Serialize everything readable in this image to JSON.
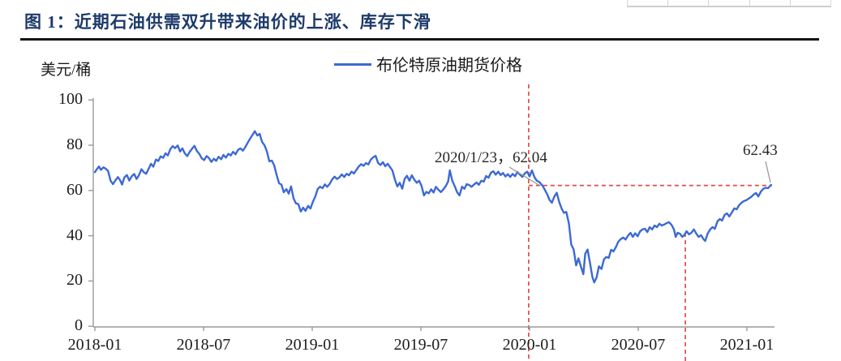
{
  "header": {
    "title": "图 1：近期石油供需双升带来油价的上涨、库存下滑"
  },
  "chart_data": {
    "type": "line",
    "title": "图 1：近期石油供需双升带来油价的上涨、库存下滑",
    "unit_label": "美元/桶",
    "legend": {
      "label": "布伦特原油期货价格",
      "position": "top-center"
    },
    "colors": {
      "line": "#3c69d4",
      "reference": "#e14b4b",
      "leader": "#999999",
      "axis": "#9a9a9a",
      "title": "#1d3a6a"
    },
    "x_tick_labels": [
      "2018-01",
      "2018-07",
      "2019-01",
      "2019-07",
      "2020-01",
      "2020-07",
      "2021-01"
    ],
    "x_tick_months": [
      0,
      6,
      12,
      18,
      24,
      30,
      36
    ],
    "y_ticks": [
      0,
      20,
      40,
      60,
      80,
      100
    ],
    "ylim": [
      0,
      100
    ],
    "xlim_months": [
      0,
      37.6
    ],
    "grid": false,
    "annotations": [
      {
        "text": "2020/1/23，62.04",
        "x_month": 24.72,
        "value": 62.04
      },
      {
        "text": "62.43",
        "x_month": 37.34,
        "value": 62.43
      }
    ],
    "reference_lines": {
      "vertical": [
        {
          "x_month": 23.95
        },
        {
          "x_month": 32.6
        }
      ],
      "horizontal": [
        {
          "value": 62.2,
          "from_month": 23.95,
          "to_month": 37.2
        }
      ]
    },
    "series": [
      {
        "name": "布伦特原油期货价格",
        "points": [
          [
            0,
            68.1
          ],
          [
            0.1,
            69.3
          ],
          [
            0.23,
            70.6
          ],
          [
            0.33,
            69.1
          ],
          [
            0.47,
            70.2
          ],
          [
            0.6,
            69.6
          ],
          [
            0.73,
            68.6
          ],
          [
            0.87,
            64.3
          ],
          [
            1,
            62.8
          ],
          [
            1.13,
            64.4
          ],
          [
            1.27,
            65.9
          ],
          [
            1.4,
            64.4
          ],
          [
            1.5,
            62.6
          ],
          [
            1.63,
            65.8
          ],
          [
            1.77,
            66.8
          ],
          [
            1.9,
            64.4
          ],
          [
            2.03,
            66.2
          ],
          [
            2.17,
            67.3
          ],
          [
            2.3,
            65.1
          ],
          [
            2.43,
            66.7
          ],
          [
            2.57,
            69.4
          ],
          [
            2.7,
            68.1
          ],
          [
            2.83,
            67.4
          ],
          [
            2.97,
            69.6
          ],
          [
            3.1,
            71.8
          ],
          [
            3.23,
            70.5
          ],
          [
            3.37,
            73.7
          ],
          [
            3.5,
            73
          ],
          [
            3.63,
            75.1
          ],
          [
            3.77,
            74.4
          ],
          [
            3.9,
            76.4
          ],
          [
            4.03,
            75.5
          ],
          [
            4.17,
            78.3
          ],
          [
            4.3,
            79.6
          ],
          [
            4.43,
            78.7
          ],
          [
            4.57,
            79.9
          ],
          [
            4.7,
            77.2
          ],
          [
            4.83,
            78.6
          ],
          [
            4.97,
            76.3
          ],
          [
            5.1,
            75.2
          ],
          [
            5.23,
            77
          ],
          [
            5.37,
            78.5
          ],
          [
            5.5,
            79.7
          ],
          [
            5.63,
            77.5
          ],
          [
            5.77,
            76.1
          ],
          [
            5.9,
            74.2
          ],
          [
            6.03,
            73.4
          ],
          [
            6.17,
            75.2
          ],
          [
            6.3,
            74.3
          ],
          [
            6.43,
            72.6
          ],
          [
            6.57,
            74
          ],
          [
            6.7,
            73.1
          ],
          [
            6.83,
            74.9
          ],
          [
            6.97,
            73.8
          ],
          [
            7.1,
            75.7
          ],
          [
            7.23,
            74.5
          ],
          [
            7.37,
            76.2
          ],
          [
            7.5,
            75.5
          ],
          [
            7.63,
            77.1
          ],
          [
            7.77,
            76
          ],
          [
            7.9,
            77.9
          ],
          [
            8.03,
            78.6
          ],
          [
            8.17,
            77.6
          ],
          [
            8.3,
            79.1
          ],
          [
            8.43,
            81
          ],
          [
            8.57,
            82.9
          ],
          [
            8.7,
            84.5
          ],
          [
            8.83,
            86.2
          ],
          [
            8.97,
            84.3
          ],
          [
            9.1,
            85
          ],
          [
            9.23,
            81.5
          ],
          [
            9.37,
            79.9
          ],
          [
            9.5,
            77.1
          ],
          [
            9.63,
            72.9
          ],
          [
            9.77,
            73.2
          ],
          [
            9.9,
            71.1
          ],
          [
            10.03,
            67
          ],
          [
            10.17,
            63.2
          ],
          [
            10.3,
            62.6
          ],
          [
            10.43,
            59.2
          ],
          [
            10.57,
            60.6
          ],
          [
            10.7,
            58.6
          ],
          [
            10.83,
            61.8
          ],
          [
            10.97,
            56.5
          ],
          [
            11.1,
            54.3
          ],
          [
            11.23,
            54
          ],
          [
            11.37,
            50.7
          ],
          [
            11.5,
            52.4
          ],
          [
            11.63,
            51
          ],
          [
            11.77,
            53.2
          ],
          [
            11.9,
            52
          ],
          [
            12.03,
            54.9
          ],
          [
            12.17,
            57.4
          ],
          [
            12.3,
            60.6
          ],
          [
            12.43,
            61.7
          ],
          [
            12.57,
            61
          ],
          [
            12.7,
            62.7
          ],
          [
            12.83,
            61.6
          ],
          [
            12.97,
            63
          ],
          [
            13.1,
            64.9
          ],
          [
            13.23,
            66.1
          ],
          [
            13.37,
            65.1
          ],
          [
            13.5,
            65.8
          ],
          [
            13.63,
            67.1
          ],
          [
            13.77,
            66
          ],
          [
            13.9,
            67.4
          ],
          [
            14.03,
            66.7
          ],
          [
            14.17,
            68.3
          ],
          [
            14.3,
            67.5
          ],
          [
            14.43,
            69
          ],
          [
            14.57,
            70.6
          ],
          [
            14.7,
            71.6
          ],
          [
            14.83,
            70.9
          ],
          [
            14.97,
            72.1
          ],
          [
            15.1,
            71.5
          ],
          [
            15.23,
            73.6
          ],
          [
            15.37,
            74.7
          ],
          [
            15.5,
            75.3
          ],
          [
            15.63,
            72.2
          ],
          [
            15.77,
            71.3
          ],
          [
            15.9,
            72.5
          ],
          [
            16.03,
            70.7
          ],
          [
            16.17,
            71.8
          ],
          [
            16.3,
            70.3
          ],
          [
            16.43,
            68.8
          ],
          [
            16.57,
            64.6
          ],
          [
            16.7,
            61.8
          ],
          [
            16.83,
            63.4
          ],
          [
            16.97,
            60.8
          ],
          [
            17.1,
            65.1
          ],
          [
            17.23,
            66.5
          ],
          [
            17.37,
            64.3
          ],
          [
            17.5,
            66.7
          ],
          [
            17.63,
            64.9
          ],
          [
            17.77,
            63.4
          ],
          [
            17.9,
            64.3
          ],
          [
            18.03,
            62.1
          ],
          [
            18.17,
            57.8
          ],
          [
            18.3,
            59.4
          ],
          [
            18.43,
            58.7
          ],
          [
            18.57,
            60.5
          ],
          [
            18.7,
            59.1
          ],
          [
            18.83,
            61.6
          ],
          [
            18.97,
            60.3
          ],
          [
            19.1,
            59.3
          ],
          [
            19.23,
            60.4
          ],
          [
            19.37,
            61.9
          ],
          [
            19.5,
            63.9
          ],
          [
            19.6,
            68.9
          ],
          [
            19.73,
            64.4
          ],
          [
            19.87,
            61.8
          ],
          [
            20,
            59.2
          ],
          [
            20.13,
            57.8
          ],
          [
            20.27,
            61.7
          ],
          [
            20.4,
            60.7
          ],
          [
            20.53,
            62.8
          ],
          [
            20.67,
            62.4
          ],
          [
            20.8,
            61.6
          ],
          [
            20.93,
            62.6
          ],
          [
            21.07,
            63.5
          ],
          [
            21.2,
            62.5
          ],
          [
            21.33,
            64.3
          ],
          [
            21.47,
            63.9
          ],
          [
            21.6,
            66.4
          ],
          [
            21.73,
            65.6
          ],
          [
            21.87,
            67.9
          ],
          [
            22,
            68.5
          ],
          [
            22.13,
            67
          ],
          [
            22.27,
            68.3
          ],
          [
            22.4,
            66.8
          ],
          [
            22.53,
            67.7
          ],
          [
            22.67,
            66.2
          ],
          [
            22.8,
            67.2
          ],
          [
            22.93,
            66
          ],
          [
            23.07,
            67.3
          ],
          [
            23.2,
            66.3
          ],
          [
            23.33,
            68.2
          ],
          [
            23.47,
            67
          ],
          [
            23.6,
            66
          ],
          [
            23.73,
            67.5
          ],
          [
            23.87,
            68.3
          ],
          [
            24,
            66.2
          ],
          [
            24.13,
            68.9
          ],
          [
            24.27,
            65.9
          ],
          [
            24.4,
            64.3
          ],
          [
            24.53,
            63.8
          ],
          [
            24.72,
            62.04
          ],
          [
            24.83,
            60.5
          ],
          [
            24.97,
            58.3
          ],
          [
            25.1,
            55.8
          ],
          [
            25.23,
            54.6
          ],
          [
            25.37,
            57.4
          ],
          [
            25.5,
            59
          ],
          [
            25.63,
            55.1
          ],
          [
            25.77,
            52
          ],
          [
            25.9,
            50.1
          ],
          [
            26.03,
            50.5
          ],
          [
            26.17,
            45.4
          ],
          [
            26.3,
            36.1
          ],
          [
            26.43,
            34
          ],
          [
            26.57,
            26.9
          ],
          [
            26.7,
            30
          ],
          [
            26.83,
            26.5
          ],
          [
            26.97,
            23
          ],
          [
            27.07,
            32
          ],
          [
            27.2,
            33.9
          ],
          [
            27.33,
            28.2
          ],
          [
            27.47,
            21.7
          ],
          [
            27.57,
            19.4
          ],
          [
            27.7,
            21.5
          ],
          [
            27.83,
            26.5
          ],
          [
            27.97,
            25.3
          ],
          [
            28.1,
            29.5
          ],
          [
            28.23,
            30.6
          ],
          [
            28.37,
            30.2
          ],
          [
            28.5,
            33.8
          ],
          [
            28.63,
            33.1
          ],
          [
            28.77,
            35
          ],
          [
            28.9,
            37.4
          ],
          [
            29.03,
            38.5
          ],
          [
            29.17,
            39.2
          ],
          [
            29.3,
            38.3
          ],
          [
            29.43,
            40
          ],
          [
            29.57,
            41.3
          ],
          [
            29.7,
            39.5
          ],
          [
            29.83,
            41.1
          ],
          [
            29.97,
            39.8
          ],
          [
            30.1,
            41.9
          ],
          [
            30.23,
            42.8
          ],
          [
            30.37,
            43.1
          ],
          [
            30.5,
            41.6
          ],
          [
            30.63,
            43.8
          ],
          [
            30.77,
            42.8
          ],
          [
            30.9,
            44.5
          ],
          [
            31.03,
            43.8
          ],
          [
            31.17,
            45.3
          ],
          [
            31.3,
            44.5
          ],
          [
            31.43,
            44.9
          ],
          [
            31.57,
            45.6
          ],
          [
            31.7,
            46
          ],
          [
            31.83,
            44.9
          ],
          [
            31.97,
            42.8
          ],
          [
            32.07,
            39.5
          ],
          [
            32.17,
            41.3
          ],
          [
            32.3,
            40.9
          ],
          [
            32.43,
            39.5
          ],
          [
            32.53,
            40.2
          ],
          [
            32.67,
            42
          ],
          [
            32.8,
            40.6
          ],
          [
            32.93,
            41.3
          ],
          [
            33.07,
            42.8
          ],
          [
            33.2,
            41
          ],
          [
            33.33,
            39.5
          ],
          [
            33.47,
            40.2
          ],
          [
            33.6,
            38.5
          ],
          [
            33.7,
            37.7
          ],
          [
            33.83,
            40.9
          ],
          [
            33.97,
            42.8
          ],
          [
            34.1,
            43.8
          ],
          [
            34.23,
            43.1
          ],
          [
            34.37,
            46.3
          ],
          [
            34.5,
            47.4
          ],
          [
            34.63,
            46.7
          ],
          [
            34.77,
            49.2
          ],
          [
            34.9,
            49.9
          ],
          [
            35.03,
            48.5
          ],
          [
            35.17,
            50.3
          ],
          [
            35.3,
            52.1
          ],
          [
            35.43,
            51.7
          ],
          [
            35.57,
            53.5
          ],
          [
            35.7,
            54.6
          ],
          [
            35.83,
            55.3
          ],
          [
            35.97,
            55.7
          ],
          [
            36.1,
            56.4
          ],
          [
            36.23,
            57.1
          ],
          [
            36.37,
            58.2
          ],
          [
            36.5,
            58.9
          ],
          [
            36.63,
            57.4
          ],
          [
            36.77,
            59.5
          ],
          [
            36.9,
            60.7
          ],
          [
            37.03,
            61.2
          ],
          [
            37.16,
            61
          ],
          [
            37.34,
            62.43
          ]
        ]
      }
    ]
  }
}
